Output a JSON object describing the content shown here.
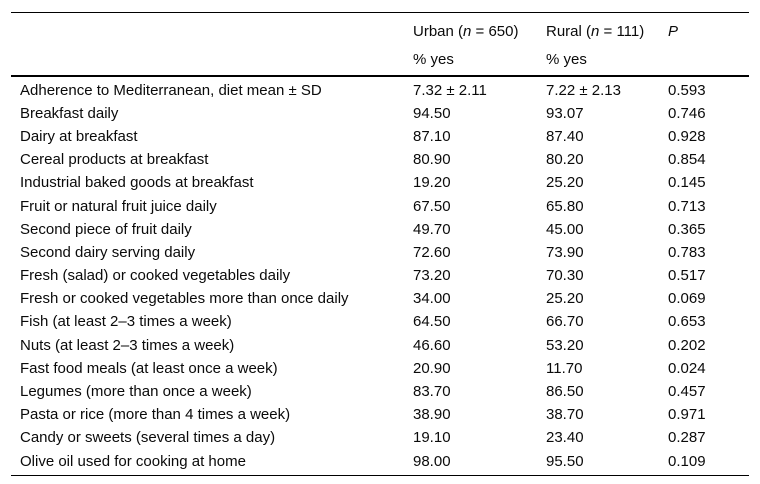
{
  "table": {
    "header": {
      "urban": {
        "pre": "Urban (",
        "var": "n",
        "post": " = 650)",
        "sub": "% yes"
      },
      "rural": {
        "pre": "Rural (",
        "var": "n",
        "post": " = 111)",
        "sub": "% yes"
      },
      "p": {
        "var": "P"
      }
    },
    "rows": [
      {
        "label": "Adherence to Mediterranean, diet mean ± SD",
        "urban": "7.32 ± 2.11",
        "rural": "7.22 ± 2.13",
        "p": "0.593"
      },
      {
        "label": "Breakfast daily",
        "urban": "94.50",
        "rural": "93.07",
        "p": "0.746"
      },
      {
        "label": "Dairy at breakfast",
        "urban": "87.10",
        "rural": "87.40",
        "p": "0.928"
      },
      {
        "label": "Cereal products at breakfast",
        "urban": "80.90",
        "rural": "80.20",
        "p": "0.854"
      },
      {
        "label": "Industrial baked goods at breakfast",
        "urban": "19.20",
        "rural": "25.20",
        "p": "0.145"
      },
      {
        "label": "Fruit or natural fruit juice daily",
        "urban": "67.50",
        "rural": "65.80",
        "p": "0.713"
      },
      {
        "label": "Second piece of fruit daily",
        "urban": "49.70",
        "rural": "45.00",
        "p": "0.365"
      },
      {
        "label": "Second dairy serving daily",
        "urban": "72.60",
        "rural": "73.90",
        "p": "0.783"
      },
      {
        "label": "Fresh (salad) or cooked vegetables daily",
        "urban": "73.20",
        "rural": "70.30",
        "p": "0.517"
      },
      {
        "label": "Fresh or cooked vegetables more than once daily",
        "urban": "34.00",
        "rural": "25.20",
        "p": "0.069"
      },
      {
        "label": "Fish (at least 2–3 times a week)",
        "urban": "64.50",
        "rural": "66.70",
        "p": "0.653"
      },
      {
        "label": "Nuts (at least 2–3 times a week)",
        "urban": "46.60",
        "rural": "53.20",
        "p": "0.202"
      },
      {
        "label": "Fast food meals (at least once a week)",
        "urban": "20.90",
        "rural": "11.70",
        "p": "0.024"
      },
      {
        "label": "Legumes (more than once a week)",
        "urban": "83.70",
        "rural": "86.50",
        "p": "0.457"
      },
      {
        "label": "Pasta or rice (more than 4 times a week)",
        "urban": "38.90",
        "rural": "38.70",
        "p": "0.971"
      },
      {
        "label": "Candy or sweets (several times a day)",
        "urban": "19.10",
        "rural": "23.40",
        "p": "0.287"
      },
      {
        "label": "Olive oil used for cooking at home",
        "urban": "98.00",
        "rural": "95.50",
        "p": "0.109"
      }
    ],
    "colors": {
      "line": "#000000",
      "text": "#0a0a0a",
      "background": "#ffffff"
    }
  }
}
